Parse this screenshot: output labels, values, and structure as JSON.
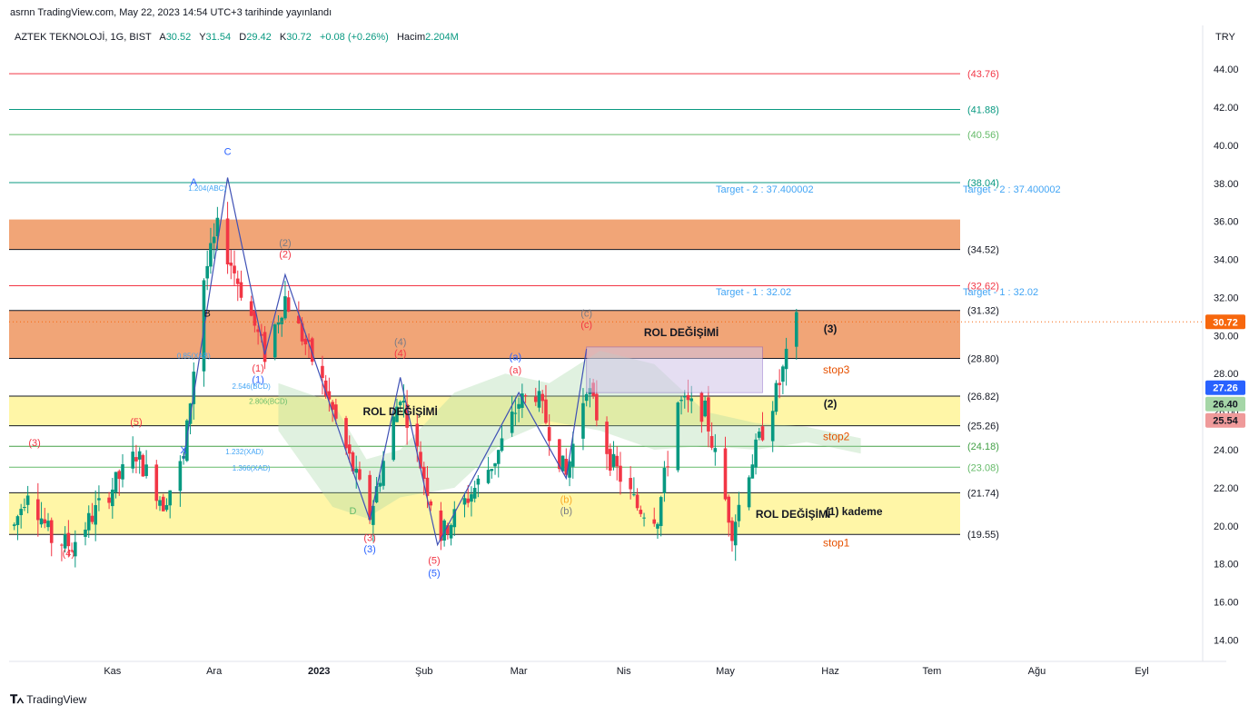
{
  "header": {
    "published": "asrnn TradingView.com, May 22, 2023 14:54 UTC+3 tarihinde yayınlandı"
  },
  "symbol": {
    "name": "AZTEK TEKNOLOJİ, 1G, BIST",
    "o_label": "A",
    "o_value": "30.52",
    "h_label": "Y",
    "h_value": "31.54",
    "l_label": "D",
    "l_value": "29.42",
    "c_label": "K",
    "c_value": "30.72",
    "change": "+0.08 (+0.26%)",
    "vol_label": "Hacim",
    "vol_value": "2.204M"
  },
  "currency": "TRY",
  "brand": "TradingView",
  "colors": {
    "up": "#089981",
    "down": "#f23645",
    "orange_zone": "#f0a070",
    "yellow_zone": "#fff59d",
    "last_price": "#f7670d",
    "price_box_blue": "#2962ff",
    "price_box_green": "#a5d6a7",
    "price_box_red": "#ef9a9a"
  },
  "chart_data": {
    "type": "candlestick",
    "y_axis": {
      "min": 13.4,
      "max": 45.2,
      "ticks": [
        "14.00",
        "16.00",
        "18.00",
        "20.00",
        "22.00",
        "24.00",
        "26.00",
        "28.00",
        "30.00",
        "32.00",
        "34.00",
        "36.00",
        "38.00",
        "40.00",
        "42.00",
        "44.00"
      ]
    },
    "x_ticks": [
      {
        "label": "Kas",
        "date": "2022-11-01"
      },
      {
        "label": "Ara",
        "date": "2022-12-01"
      },
      {
        "label": "2023",
        "date": "2023-01-01"
      },
      {
        "label": "Şub",
        "date": "2023-02-01"
      },
      {
        "label": "Mar",
        "date": "2023-03-01"
      },
      {
        "label": "Nis",
        "date": "2023-04-01"
      },
      {
        "label": "May",
        "date": "2023-05-01"
      },
      {
        "label": "Haz",
        "date": "2023-06-01"
      },
      {
        "label": "Tem",
        "date": "2023-07-01"
      },
      {
        "label": "Ağu",
        "date": "2023-08-01"
      },
      {
        "label": "Eyl",
        "date": "2023-09-01"
      }
    ],
    "levels": [
      {
        "value": 43.76,
        "label": "(43.76)",
        "color": "#f23645"
      },
      {
        "value": 41.88,
        "label": "(41.88)",
        "color": "#089981"
      },
      {
        "value": 40.56,
        "label": "(40.56)",
        "color": "#66bb6a"
      },
      {
        "value": 38.04,
        "label": "(38.04)",
        "color": "#089981"
      },
      {
        "value": 34.52,
        "label": "(34.52)",
        "color": "#131722"
      },
      {
        "value": 32.62,
        "label": "(32.62)",
        "color": "#f23645"
      },
      {
        "value": 31.32,
        "label": "(31.32)",
        "color": "#131722"
      },
      {
        "value": 28.8,
        "label": "(28.80)",
        "color": "#131722"
      },
      {
        "value": 26.82,
        "label": "(26.82)",
        "color": "#131722"
      },
      {
        "value": 25.26,
        "label": "(25.26)",
        "color": "#131722"
      },
      {
        "value": 24.18,
        "label": "(24.18)",
        "color": "#43a047"
      },
      {
        "value": 23.08,
        "label": "(23.08)",
        "color": "#66bb6a"
      },
      {
        "value": 21.74,
        "label": "(21.74)",
        "color": "#131722"
      },
      {
        "value": 19.55,
        "label": "(19.55)",
        "color": "#131722"
      }
    ],
    "zones": [
      {
        "from": 34.52,
        "to": 36.1,
        "color": "orange"
      },
      {
        "from": 28.8,
        "to": 31.32,
        "color": "orange"
      },
      {
        "from": 25.26,
        "to": 26.82,
        "color": "yellow"
      },
      {
        "from": 19.55,
        "to": 21.74,
        "color": "yellow"
      }
    ],
    "zone_labels": [
      {
        "text": "ROL DEĞİŞİMİ",
        "price": 30.15,
        "date": "2023-04-18"
      },
      {
        "text": "ROL DEĞİŞİMİ",
        "price": 26.0,
        "date": "2023-01-25"
      },
      {
        "text": "ROL DEĞİŞİMİ",
        "price": 20.6,
        "date": "2023-05-21"
      },
      {
        "text": "(3)",
        "price": 30.35,
        "date": "2023-06-01"
      },
      {
        "text": "(2)",
        "price": 26.4,
        "date": "2023-06-01"
      },
      {
        "text": "(1) kademe",
        "price": 20.75,
        "date": "2023-06-08"
      }
    ],
    "stops": [
      {
        "text": "stop3",
        "price": 28.2
      },
      {
        "text": "stop2",
        "price": 24.7
      },
      {
        "text": "stop1",
        "price": 19.1
      }
    ],
    "targets": [
      {
        "text": "Target - 2 : 37.400002",
        "price": 37.7
      },
      {
        "text": "Target - 1 : 32.02",
        "price": 32.3
      }
    ],
    "price_boxes": [
      {
        "value": "30.72",
        "price": 30.72,
        "color": "#f7670d"
      },
      {
        "value": "27.26",
        "price": 27.26,
        "color": "#2962ff"
      },
      {
        "value": "26.40",
        "price": 26.4,
        "color": "#a5d6a7"
      },
      {
        "value": "25.54",
        "price": 25.54,
        "color": "#ef9a9a"
      }
    ],
    "wave_labels": [
      {
        "text": "(3)",
        "date": "2022-10-09",
        "price": 24.2,
        "color": "#f23645"
      },
      {
        "text": "(4)",
        "date": "2022-10-19",
        "price": 18.4,
        "color": "#f23645"
      },
      {
        "text": "(5)",
        "date": "2022-11-08",
        "price": 25.3,
        "color": "#f23645"
      },
      {
        "text": "X",
        "date": "2022-11-22",
        "price": 23.8,
        "color": "#2962ff"
      },
      {
        "text": "A",
        "date": "2022-11-25",
        "price": 37.9,
        "color": "#2962ff"
      },
      {
        "text": "1.204(ABC)",
        "date": "2022-11-29",
        "price": 37.6,
        "color": "#42a5f5"
      },
      {
        "text": "B",
        "date": "2022-11-29",
        "price": 31.0,
        "color": "#131722"
      },
      {
        "text": "0.85(XAB)",
        "date": "2022-11-25",
        "price": 28.8,
        "color": "#42a5f5"
      },
      {
        "text": "C",
        "date": "2022-12-05",
        "price": 39.5,
        "color": "#2962ff"
      },
      {
        "text": "(1)",
        "date": "2022-12-14",
        "price": 28.1,
        "color": "#f23645"
      },
      {
        "text": "(1)",
        "date": "2022-12-14",
        "price": 27.5,
        "color": "#2962ff"
      },
      {
        "text": "2.546(BCD)",
        "date": "2022-12-12",
        "price": 27.2,
        "color": "#42a5f5"
      },
      {
        "text": "2.806(BCD)",
        "date": "2022-12-17",
        "price": 26.4,
        "color": "#66bb6a"
      },
      {
        "text": "1.232(XAD)",
        "date": "2022-12-10",
        "price": 23.75,
        "color": "#42a5f5"
      },
      {
        "text": "1.366(XAD)",
        "date": "2022-12-12",
        "price": 22.9,
        "color": "#42a5f5"
      },
      {
        "text": "(2)",
        "date": "2022-12-22",
        "price": 34.7,
        "color": "#787b86"
      },
      {
        "text": "(2)",
        "date": "2022-12-22",
        "price": 34.1,
        "color": "#f23645"
      },
      {
        "text": "D",
        "date": "2023-01-11",
        "price": 20.6,
        "color": "#66bb6a"
      },
      {
        "text": "(3)",
        "date": "2023-01-16",
        "price": 19.2,
        "color": "#f23645"
      },
      {
        "text": "(3)",
        "date": "2023-01-16",
        "price": 18.6,
        "color": "#2962ff"
      },
      {
        "text": "(4)",
        "date": "2023-01-25",
        "price": 29.5,
        "color": "#787b86"
      },
      {
        "text": "(4)",
        "date": "2023-01-25",
        "price": 28.9,
        "color": "#f23645"
      },
      {
        "text": "(5)",
        "date": "2023-02-04",
        "price": 18.0,
        "color": "#f23645"
      },
      {
        "text": "(5)",
        "date": "2023-02-04",
        "price": 17.35,
        "color": "#2962ff"
      },
      {
        "text": "(a)",
        "date": "2023-02-28",
        "price": 28.7,
        "color": "#2962ff"
      },
      {
        "text": "(a)",
        "date": "2023-02-28",
        "price": 28.0,
        "color": "#f23645"
      },
      {
        "text": "(b)",
        "date": "2023-03-15",
        "price": 21.2,
        "color": "#f9a825"
      },
      {
        "text": "(b)",
        "date": "2023-03-15",
        "price": 20.6,
        "color": "#787b86"
      },
      {
        "text": "(c)",
        "date": "2023-03-21",
        "price": 31.0,
        "color": "#787b86"
      },
      {
        "text": "(c)",
        "date": "2023-03-21",
        "price": 30.4,
        "color": "#f23645"
      }
    ]
  }
}
